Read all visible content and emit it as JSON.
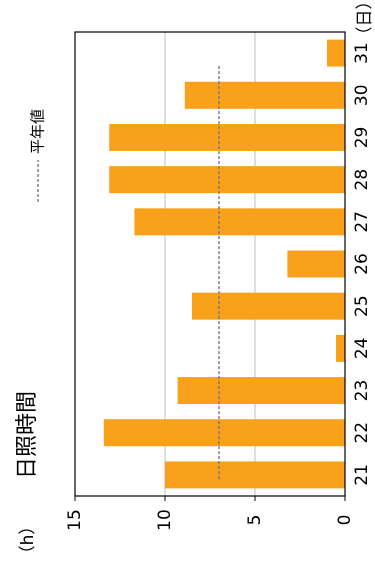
{
  "chart_data": {
    "type": "bar",
    "title": "日照時間",
    "ylabel": "（h）",
    "categories": [
      "21",
      "22",
      "23",
      "24",
      "25",
      "26",
      "27",
      "28",
      "29",
      "30",
      "31"
    ],
    "category_unit": "（日）",
    "series": [
      {
        "values": [
          10.0,
          13.4,
          9.3,
          0.5,
          8.5,
          3.2,
          11.7,
          13.1,
          13.1,
          8.9,
          1.0
        ],
        "color": "#f9a11b"
      }
    ],
    "average": {
      "label": "平年値",
      "value": 7.0,
      "color": "#777777"
    },
    "ylim": [
      0,
      15
    ],
    "yticks": [
      0,
      5,
      10,
      15
    ],
    "grid": true,
    "orientation": "rotated-90-ccw",
    "legend_position": "top-right"
  }
}
